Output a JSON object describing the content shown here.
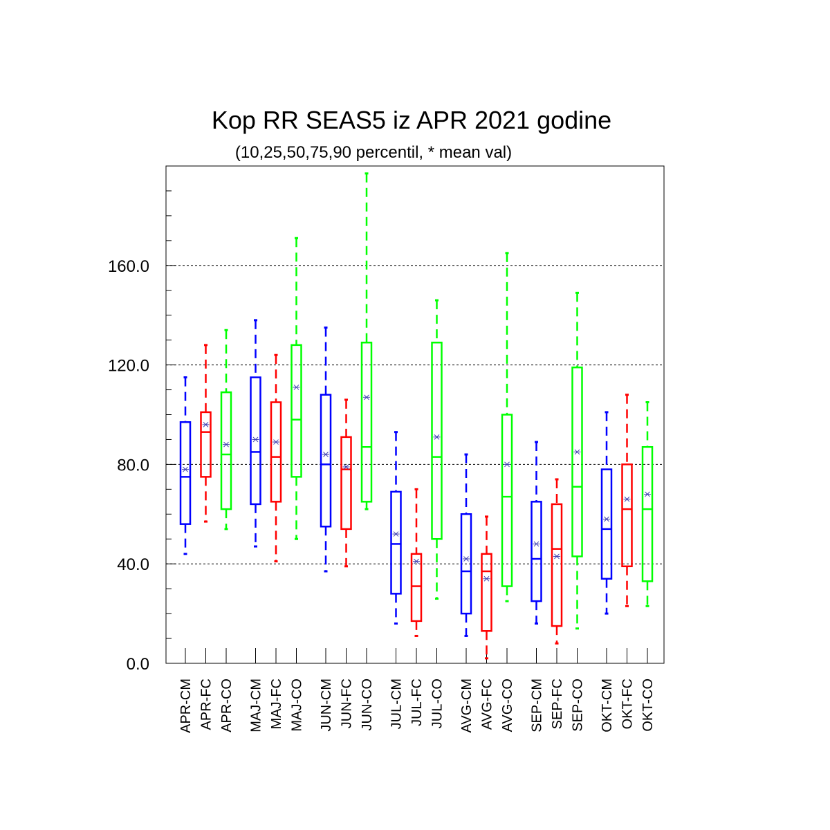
{
  "chart_data": {
    "type": "box",
    "title": "Kop RR SEAS5 iz APR 2021 godine",
    "subtitle": "(10,25,50,75,90 percentil, * mean val)",
    "ylim": [
      0,
      200
    ],
    "yticks": [
      0,
      40,
      80,
      120,
      160
    ],
    "ytick_labels": [
      "0.0",
      "40.0",
      "80.0",
      "120.0",
      "160.0"
    ],
    "grid": true,
    "colors": {
      "CM": "#0000ff",
      "FC": "#ff0000",
      "CO": "#00ff00",
      "mean": "#4040b0"
    },
    "boxes": [
      {
        "label": "APR-CM",
        "kind": "CM",
        "p10": 44,
        "p25": 56,
        "p50": 75,
        "p75": 97,
        "p90": 115,
        "mean": 78
      },
      {
        "label": "APR-FC",
        "kind": "FC",
        "p10": 57,
        "p25": 75,
        "p50": 93,
        "p75": 101,
        "p90": 128,
        "mean": 96
      },
      {
        "label": "APR-CO",
        "kind": "CO",
        "p10": 54,
        "p25": 62,
        "p50": 84,
        "p75": 109,
        "p90": 134,
        "mean": 88
      },
      {
        "label": "MAJ-CM",
        "kind": "CM",
        "p10": 47,
        "p25": 64,
        "p50": 85,
        "p75": 115,
        "p90": 138,
        "mean": 90
      },
      {
        "label": "MAJ-FC",
        "kind": "FC",
        "p10": 41,
        "p25": 65,
        "p50": 83,
        "p75": 105,
        "p90": 124,
        "mean": 89
      },
      {
        "label": "MAJ-CO",
        "kind": "CO",
        "p10": 50,
        "p25": 75,
        "p50": 98,
        "p75": 128,
        "p90": 171,
        "mean": 111
      },
      {
        "label": "JUN-CM",
        "kind": "CM",
        "p10": 37,
        "p25": 55,
        "p50": 80,
        "p75": 108,
        "p90": 135,
        "mean": 84
      },
      {
        "label": "JUN-FC",
        "kind": "FC",
        "p10": 39,
        "p25": 54,
        "p50": 78,
        "p75": 91,
        "p90": 106,
        "mean": 79
      },
      {
        "label": "JUN-CO",
        "kind": "CO",
        "p10": 62,
        "p25": 65,
        "p50": 87,
        "p75": 129,
        "p90": 197,
        "mean": 107
      },
      {
        "label": "JUL-CM",
        "kind": "CM",
        "p10": 16,
        "p25": 28,
        "p50": 48,
        "p75": 69,
        "p90": 93,
        "mean": 52
      },
      {
        "label": "JUL-FC",
        "kind": "FC",
        "p10": 11,
        "p25": 17,
        "p50": 31,
        "p75": 44,
        "p90": 70,
        "mean": 41
      },
      {
        "label": "JUL-CO",
        "kind": "CO",
        "p10": 26,
        "p25": 50,
        "p50": 83,
        "p75": 129,
        "p90": 146,
        "mean": 91
      },
      {
        "label": "AVG-CM",
        "kind": "CM",
        "p10": 11,
        "p25": 20,
        "p50": 37,
        "p75": 60,
        "p90": 84,
        "mean": 42
      },
      {
        "label": "AVG-FC",
        "kind": "FC",
        "p10": 2,
        "p25": 13,
        "p50": 37,
        "p75": 44,
        "p90": 59,
        "mean": 34
      },
      {
        "label": "AVG-CO",
        "kind": "CO",
        "p10": 25,
        "p25": 31,
        "p50": 67,
        "p75": 100,
        "p90": 165,
        "mean": 80
      },
      {
        "label": "SEP-CM",
        "kind": "CM",
        "p10": 16,
        "p25": 25,
        "p50": 42,
        "p75": 65,
        "p90": 89,
        "mean": 48
      },
      {
        "label": "SEP-FC",
        "kind": "FC",
        "p10": 8,
        "p25": 15,
        "p50": 46,
        "p75": 64,
        "p90": 74,
        "mean": 43
      },
      {
        "label": "SEP-CO",
        "kind": "CO",
        "p10": 14,
        "p25": 43,
        "p50": 71,
        "p75": 119,
        "p90": 149,
        "mean": 85
      },
      {
        "label": "OKT-CM",
        "kind": "CM",
        "p10": 20,
        "p25": 34,
        "p50": 54,
        "p75": 78,
        "p90": 101,
        "mean": 58
      },
      {
        "label": "OKT-FC",
        "kind": "FC",
        "p10": 23,
        "p25": 39,
        "p50": 62,
        "p75": 80,
        "p90": 108,
        "mean": 66
      },
      {
        "label": "OKT-CO",
        "kind": "CO",
        "p10": 23,
        "p25": 33,
        "p50": 62,
        "p75": 87,
        "p90": 105,
        "mean": 68
      }
    ]
  }
}
